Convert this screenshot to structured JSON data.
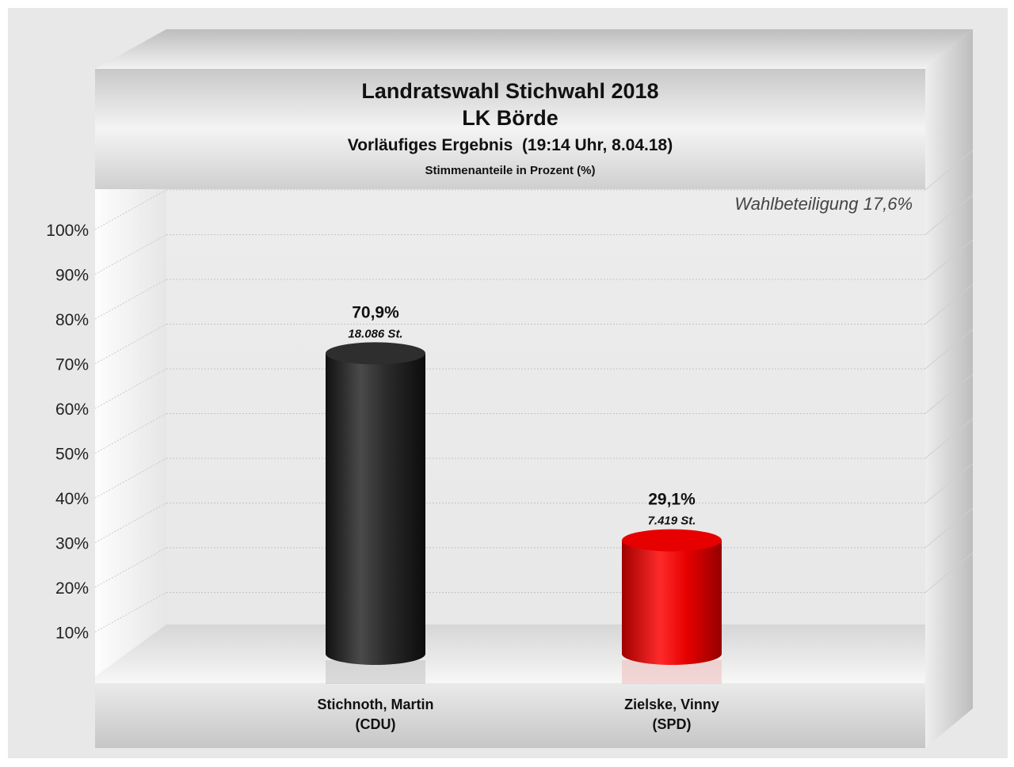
{
  "chart_data": {
    "type": "bar",
    "title": "Landratswahl Stichwahl 2018",
    "subtitle": "LK Börde",
    "subtitle2": "Vorläufiges Ergebnis  (19:14 Uhr, 8.04.18)",
    "subtitle3": "Stimmenanteile in Prozent (%)",
    "annotation": "Wahlbeteiligung 17,6%",
    "ylim": [
      0,
      100
    ],
    "yticks": [
      10,
      20,
      30,
      40,
      50,
      60,
      70,
      80,
      90,
      100
    ],
    "ytick_labels": [
      "10%",
      "20%",
      "30%",
      "40%",
      "50%",
      "60%",
      "70%",
      "80%",
      "90%",
      "100%"
    ],
    "grid": true,
    "bars": [
      {
        "category_line1": "Stichnoth, Martin",
        "category_line2": "(CDU)",
        "value": 70.9,
        "value_label": "70,9%",
        "votes_label": "18.086 St.",
        "color": "#2b2b2b"
      },
      {
        "category_line1": "Zielske, Vinny",
        "category_line2": "(SPD)",
        "value": 29.1,
        "value_label": "29,1%",
        "votes_label": "7.419 St.",
        "color": "#e60000"
      }
    ]
  }
}
